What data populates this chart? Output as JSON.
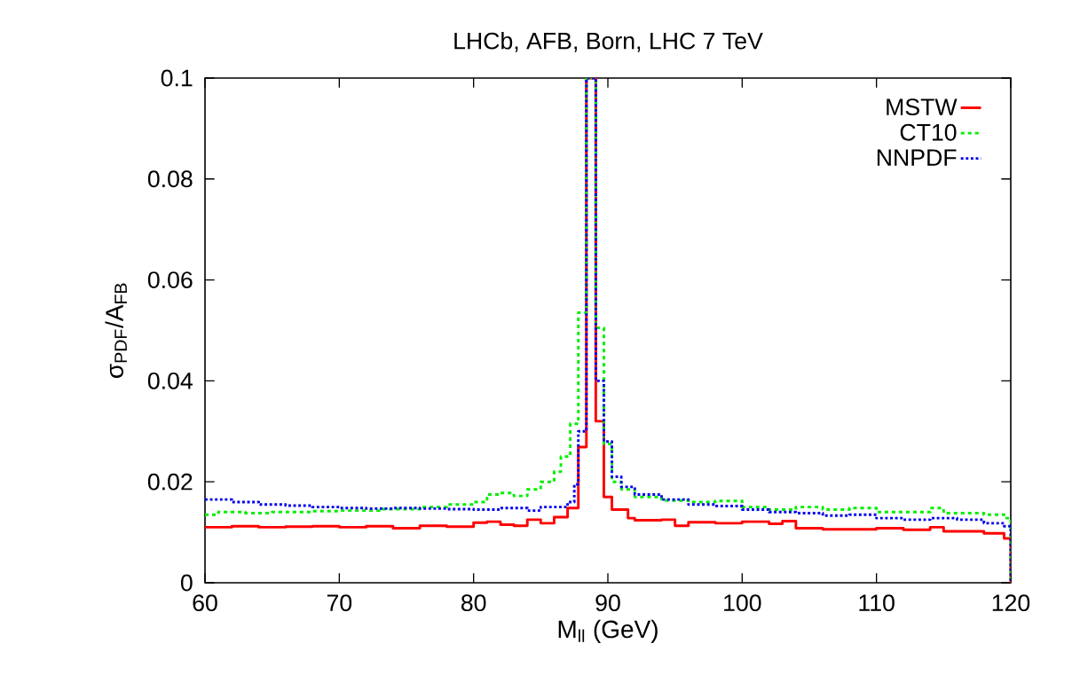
{
  "chart_data": {
    "type": "step",
    "title": "LHCb, AFB, Born, LHC 7 TeV",
    "xlabel": "M$_{ll}$ (GeV)",
    "ylabel": "σ$_{PDF}$/A$_{FB}$",
    "xlim": [
      60,
      120
    ],
    "ylim": [
      0,
      0.1
    ],
    "xticks": [
      60,
      70,
      80,
      90,
      100,
      110,
      120
    ],
    "yticks": [
      0,
      0.02,
      0.04,
      0.06,
      0.08,
      0.1
    ],
    "grid": false,
    "legend": "top right",
    "series": [
      {
        "name": "MSTW",
        "color": "#ff0000",
        "line_style": "solid",
        "x": [
          60,
          62,
          64,
          66,
          68,
          70,
          72,
          74,
          76,
          78,
          80,
          81,
          82,
          83,
          84,
          85,
          86,
          87,
          87.8,
          88.4,
          89.1,
          89.7,
          90.3,
          91.5,
          92,
          94,
          95,
          96,
          98,
          100,
          102,
          103,
          104,
          106,
          108,
          110,
          112,
          114,
          115,
          118,
          119.5,
          120
        ],
        "values": [
          0.011,
          0.0112,
          0.011,
          0.0111,
          0.0112,
          0.011,
          0.0112,
          0.0108,
          0.0113,
          0.0111,
          0.0119,
          0.0121,
          0.0115,
          0.0113,
          0.0125,
          0.0118,
          0.013,
          0.0148,
          0.0269,
          0.1,
          0.032,
          0.017,
          0.0145,
          0.0128,
          0.0124,
          0.0125,
          0.0113,
          0.012,
          0.0118,
          0.0121,
          0.0117,
          0.0122,
          0.0108,
          0.0106,
          0.0106,
          0.0108,
          0.0105,
          0.011,
          0.0102,
          0.0098,
          0.0088,
          0
        ]
      },
      {
        "name": "CT10",
        "color": "#00ee00",
        "line_style": "dashed",
        "x": [
          60,
          61,
          63,
          65,
          68,
          70,
          73,
          76,
          78,
          80,
          81,
          82,
          83,
          84,
          85,
          86,
          86.5,
          87.2,
          87.8,
          88.4,
          89.1,
          89.7,
          90.3,
          91,
          92,
          94,
          96,
          98,
          100,
          102,
          104,
          106,
          108,
          110,
          112,
          114,
          115,
          118,
          119.5,
          120
        ],
        "values": [
          0.0135,
          0.014,
          0.0138,
          0.014,
          0.0142,
          0.0143,
          0.0146,
          0.015,
          0.0155,
          0.016,
          0.0175,
          0.0178,
          0.0172,
          0.0185,
          0.02,
          0.022,
          0.025,
          0.0315,
          0.0535,
          0.1,
          0.0505,
          0.0275,
          0.02,
          0.0185,
          0.017,
          0.0163,
          0.016,
          0.0162,
          0.015,
          0.0145,
          0.015,
          0.0145,
          0.0148,
          0.014,
          0.014,
          0.0148,
          0.0138,
          0.0135,
          0.0128,
          0
        ]
      },
      {
        "name": "NNPDF",
        "color": "#0000ee",
        "line_style": "dotted",
        "x": [
          60,
          62,
          64,
          66,
          68,
          70,
          72,
          74,
          76,
          78,
          80,
          82,
          84,
          85,
          86.5,
          87,
          87.5,
          87.8,
          88.4,
          89.1,
          89.7,
          90.3,
          91,
          92,
          94,
          96,
          98,
          100,
          102,
          104,
          106,
          108,
          110,
          112,
          114,
          116,
          118,
          119.5,
          120
        ],
        "values": [
          0.0165,
          0.016,
          0.0155,
          0.0153,
          0.015,
          0.0148,
          0.0147,
          0.0148,
          0.0147,
          0.0146,
          0.0145,
          0.0148,
          0.0143,
          0.015,
          0.015,
          0.016,
          0.0195,
          0.03,
          0.1,
          0.04,
          0.028,
          0.021,
          0.019,
          0.0175,
          0.0165,
          0.0155,
          0.0152,
          0.0145,
          0.014,
          0.0138,
          0.0133,
          0.0135,
          0.0128,
          0.0125,
          0.0128,
          0.0125,
          0.0118,
          0.0112,
          0
        ]
      }
    ]
  }
}
